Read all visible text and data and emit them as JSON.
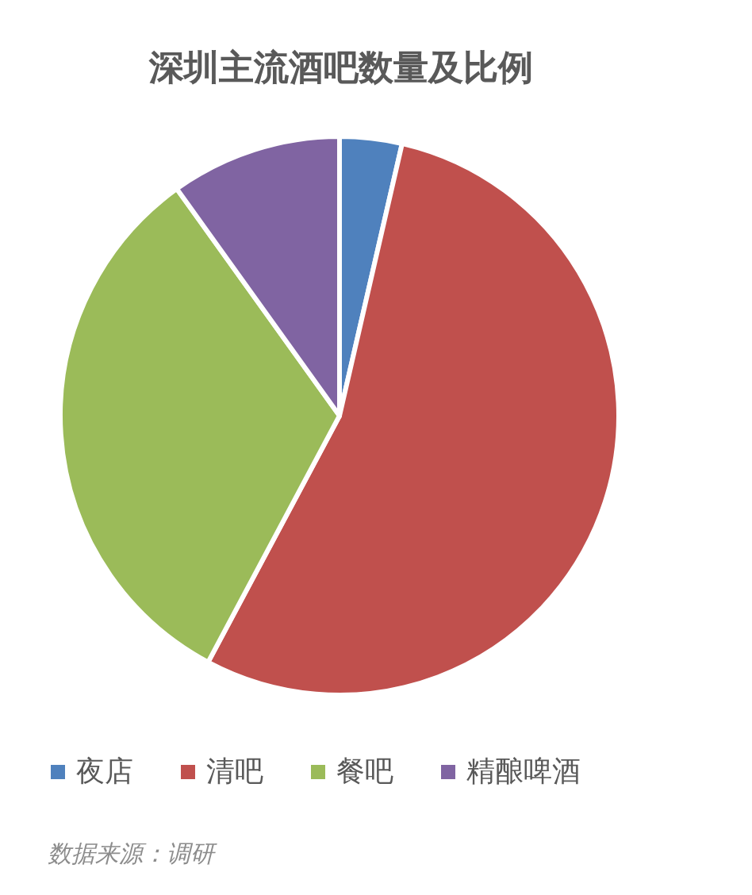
{
  "chart_data": {
    "type": "pie",
    "title": "深圳主流酒吧数量及比例",
    "categories": [
      "夜店",
      "清吧",
      "餐吧",
      "精酿啤酒"
    ],
    "values": [
      3.6,
      54.2,
      32.3,
      9.9
    ],
    "colors": [
      "#4f81bd",
      "#c0504d",
      "#9bbb59",
      "#8064a2"
    ],
    "legend": "bottom",
    "annotations": [
      "数据来源：调研"
    ]
  }
}
